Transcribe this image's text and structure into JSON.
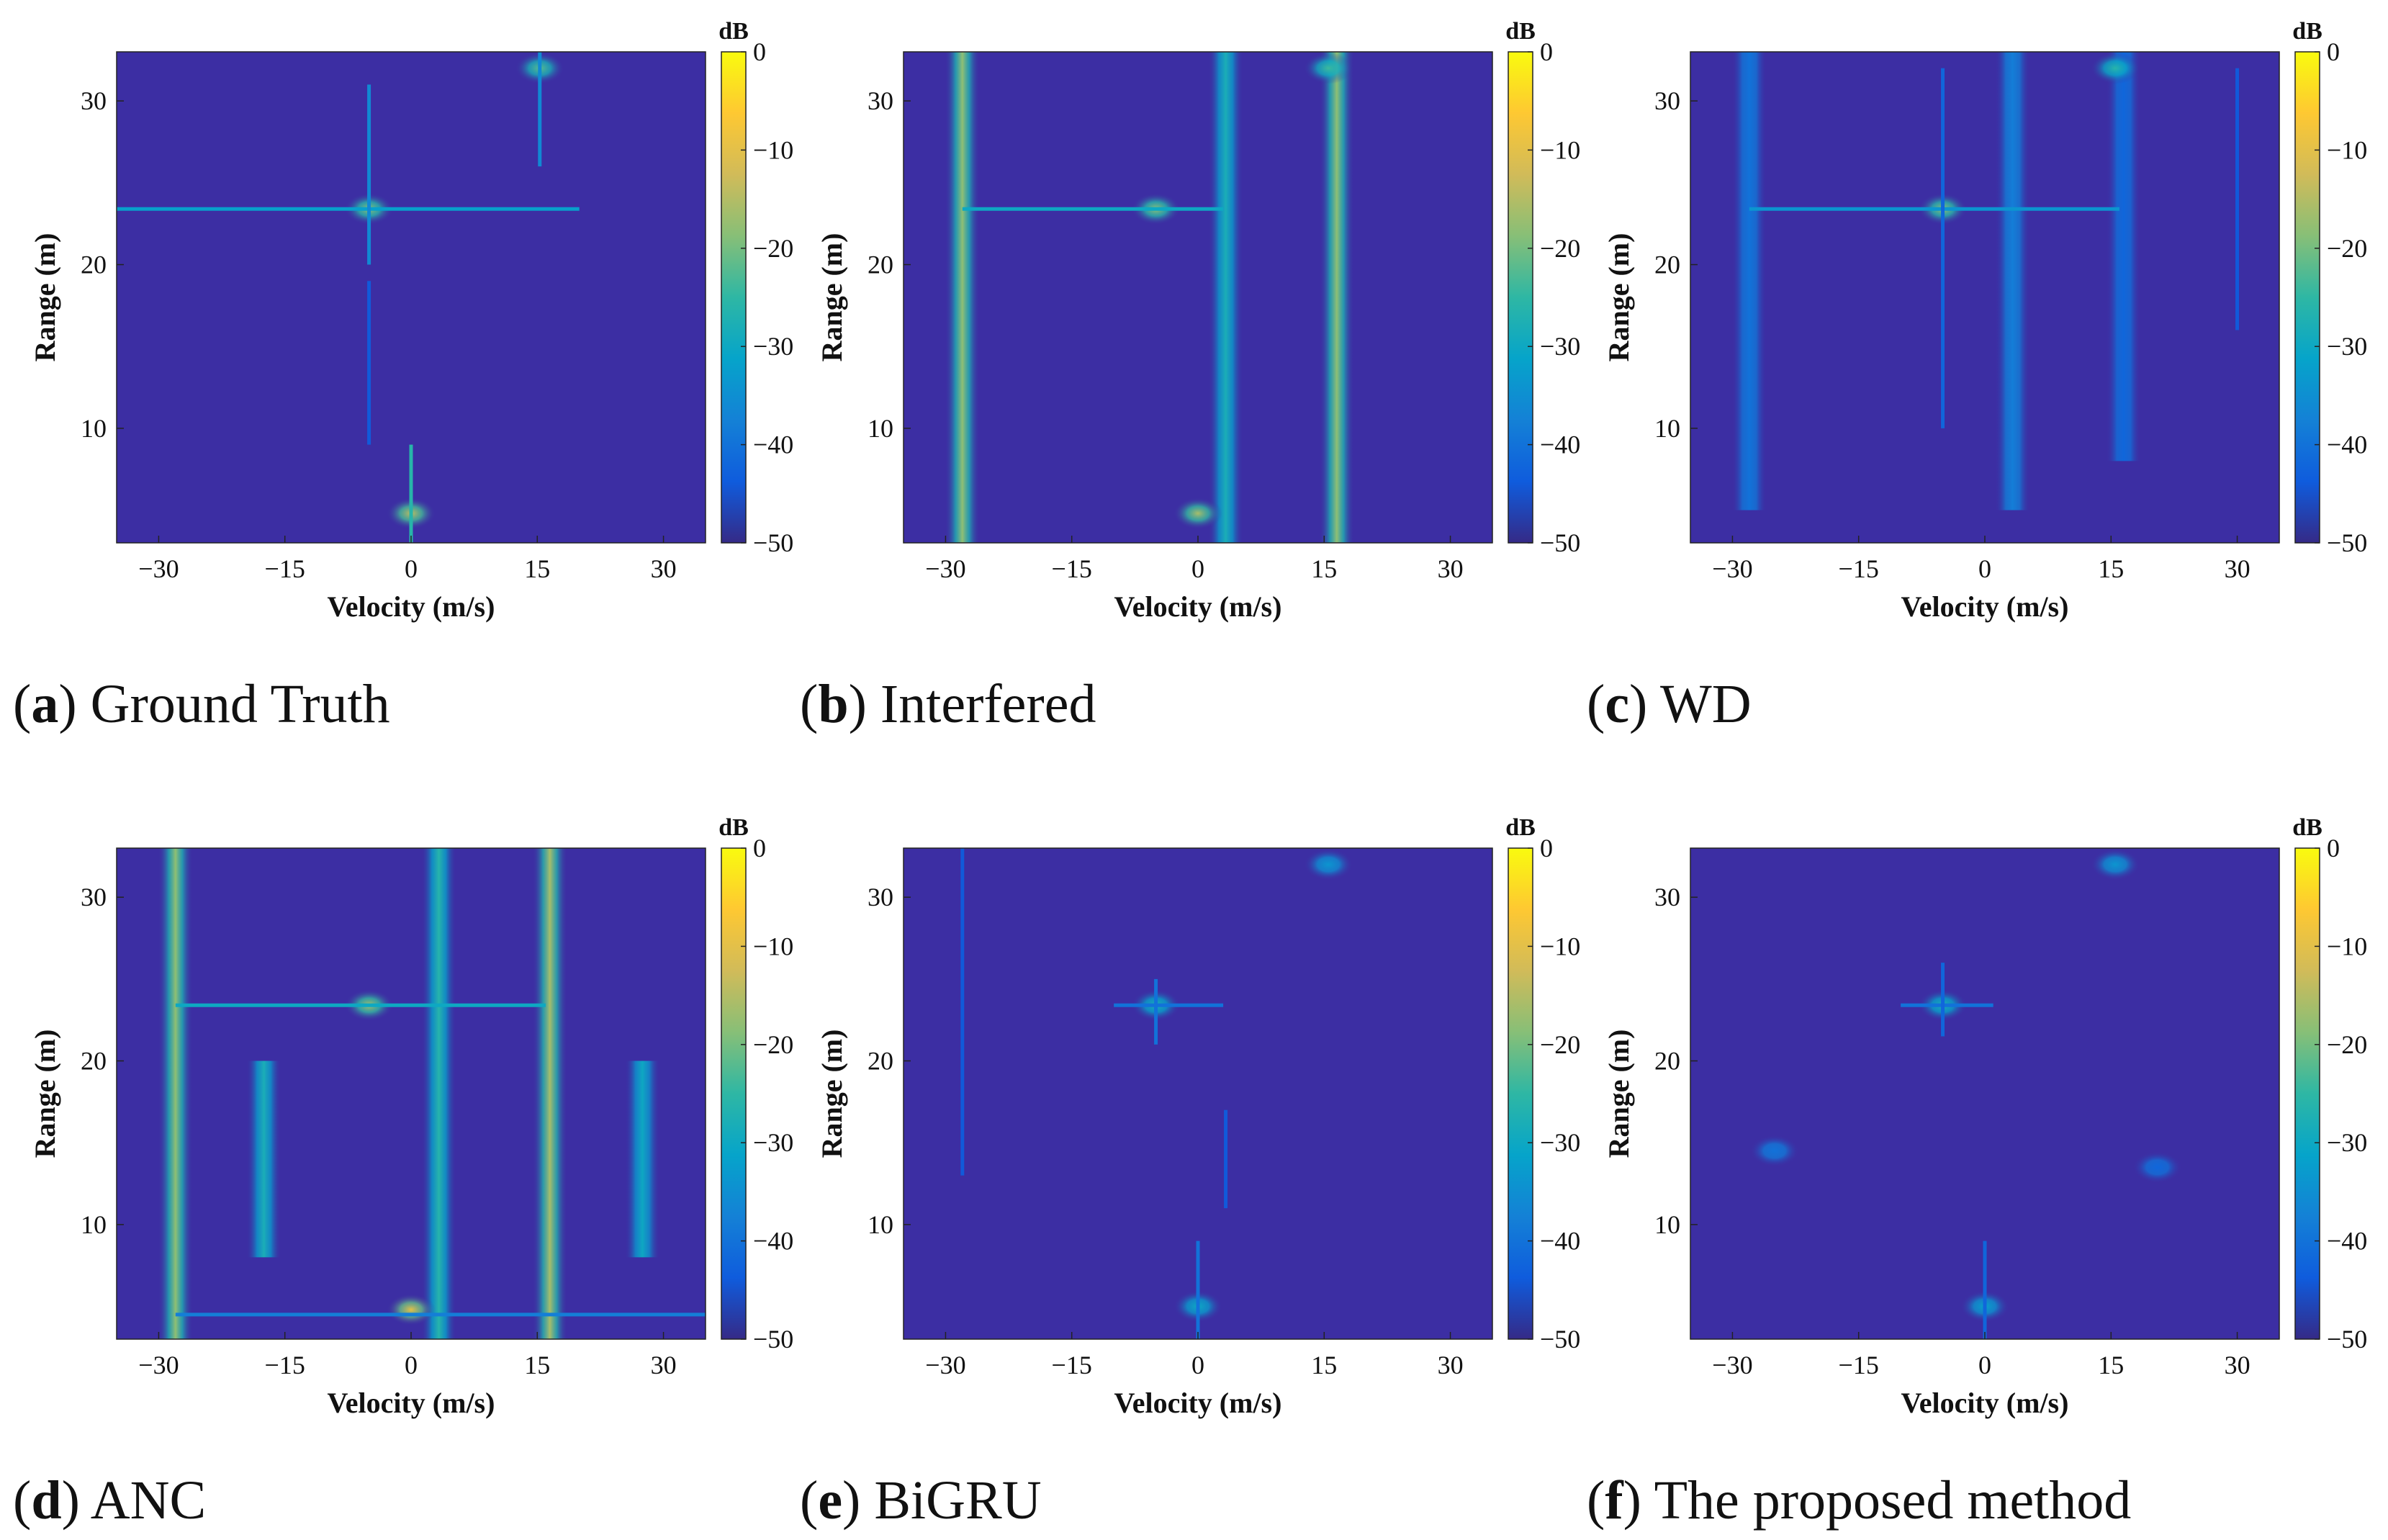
{
  "figure": {
    "colors": {
      "background": "#3c2ea3",
      "colormap": [
        "#352a87",
        "#0f5cdd",
        "#1481d6",
        "#06a4ca",
        "#2eb7a4",
        "#87bf77",
        "#d1bb59",
        "#fec832",
        "#f9fb0e"
      ]
    }
  },
  "chart_data": [
    {
      "type": "heatmap",
      "panel_letter": "a",
      "title": "Ground Truth",
      "xlabel": "Velocity (m/s)",
      "ylabel": "Range (m)",
      "xlim": [
        -35,
        35
      ],
      "ylim": [
        3,
        33
      ],
      "xticks": [
        -30,
        -15,
        0,
        15,
        30
      ],
      "yticks": [
        10,
        20,
        30
      ],
      "colorbar": {
        "label": "dB",
        "range": [
          -50,
          0
        ],
        "ticks": [
          0,
          -10,
          -20,
          -30,
          -40,
          -50
        ]
      },
      "features": [
        {
          "kind": "peak",
          "velocity": -5,
          "range": 23.4,
          "level_db": -18
        },
        {
          "kind": "hline",
          "range": 23.4,
          "from": -35,
          "to": 20,
          "level_db": -32
        },
        {
          "kind": "vline",
          "velocity": -5,
          "from": 20,
          "to": 31,
          "level_db": -36
        },
        {
          "kind": "peak",
          "velocity": 15.3,
          "range": 32,
          "level_db": -22
        },
        {
          "kind": "vline",
          "velocity": 15.3,
          "from": 26,
          "to": 33,
          "level_db": -36
        },
        {
          "kind": "peak",
          "velocity": 0,
          "range": 4.8,
          "level_db": -14
        },
        {
          "kind": "vline",
          "velocity": 0,
          "from": 3,
          "to": 9,
          "level_db": -26
        },
        {
          "kind": "vline",
          "velocity": -5,
          "from": 9,
          "to": 19,
          "level_db": -44
        }
      ]
    },
    {
      "type": "heatmap",
      "panel_letter": "b",
      "title": "Interfered",
      "xlabel": "Velocity (m/s)",
      "ylabel": "Range (m)",
      "xlim": [
        -35,
        35
      ],
      "ylim": [
        3,
        33
      ],
      "xticks": [
        -30,
        -15,
        0,
        15,
        30
      ],
      "yticks": [
        10,
        20,
        30
      ],
      "colorbar": {
        "label": "dB",
        "range": [
          -50,
          0
        ],
        "ticks": [
          0,
          -10,
          -20,
          -30,
          -40,
          -50
        ]
      },
      "features": [
        {
          "kind": "band",
          "velocity": -28,
          "from": 3,
          "to": 33,
          "level_db": -18
        },
        {
          "kind": "band",
          "velocity": 3.3,
          "from": 3,
          "to": 33,
          "level_db": -28
        },
        {
          "kind": "band",
          "velocity": 16.5,
          "from": 3,
          "to": 33,
          "level_db": -18
        },
        {
          "kind": "peak",
          "velocity": -5,
          "range": 23.4,
          "level_db": -18
        },
        {
          "kind": "hline",
          "range": 23.4,
          "from": -28,
          "to": 3,
          "level_db": -30
        },
        {
          "kind": "peak",
          "velocity": 0,
          "range": 4.8,
          "level_db": -16
        },
        {
          "kind": "peak",
          "velocity": 15.5,
          "range": 32,
          "level_db": -24
        }
      ]
    },
    {
      "type": "heatmap",
      "panel_letter": "c",
      "title": "WD",
      "xlabel": "Velocity (m/s)",
      "ylabel": "Range (m)",
      "xlim": [
        -35,
        35
      ],
      "ylim": [
        3,
        33
      ],
      "xticks": [
        -30,
        -15,
        0,
        15,
        30
      ],
      "yticks": [
        10,
        20,
        30
      ],
      "colorbar": {
        "label": "dB",
        "range": [
          -50,
          0
        ],
        "ticks": [
          0,
          -10,
          -20,
          -30,
          -40,
          -50
        ]
      },
      "features": [
        {
          "kind": "band",
          "velocity": -28,
          "from": 5,
          "to": 33,
          "level_db": -40
        },
        {
          "kind": "band",
          "velocity": 3.3,
          "from": 5,
          "to": 33,
          "level_db": -38
        },
        {
          "kind": "band",
          "velocity": 16.5,
          "from": 8,
          "to": 33,
          "level_db": -42
        },
        {
          "kind": "peak",
          "velocity": -5,
          "range": 23.4,
          "level_db": -18
        },
        {
          "kind": "hline",
          "range": 23.4,
          "from": -28,
          "to": 16,
          "level_db": -34
        },
        {
          "kind": "peak",
          "velocity": 15.5,
          "range": 32,
          "level_db": -26
        },
        {
          "kind": "vline",
          "velocity": -5,
          "from": 10,
          "to": 32,
          "level_db": -42
        },
        {
          "kind": "vline",
          "velocity": 30,
          "from": 16,
          "to": 32,
          "level_db": -44
        }
      ]
    },
    {
      "type": "heatmap",
      "panel_letter": "d",
      "title": "ANC",
      "xlabel": "Velocity (m/s)",
      "ylabel": "Range (m)",
      "xlim": [
        -35,
        35
      ],
      "ylim": [
        3,
        33
      ],
      "xticks": [
        -30,
        -15,
        0,
        15,
        30
      ],
      "yticks": [
        10,
        20,
        30
      ],
      "colorbar": {
        "label": "dB",
        "range": [
          -50,
          0
        ],
        "ticks": [
          0,
          -10,
          -20,
          -30,
          -40,
          -50
        ]
      },
      "features": [
        {
          "kind": "band",
          "velocity": -28,
          "from": 3,
          "to": 33,
          "level_db": -18
        },
        {
          "kind": "band",
          "velocity": 3.3,
          "from": 3,
          "to": 33,
          "level_db": -26
        },
        {
          "kind": "band",
          "velocity": 16.5,
          "from": 3,
          "to": 33,
          "level_db": -16
        },
        {
          "kind": "band",
          "velocity": -17.5,
          "from": 8,
          "to": 20,
          "level_db": -28
        },
        {
          "kind": "band",
          "velocity": 27.5,
          "from": 8,
          "to": 20,
          "level_db": -30
        },
        {
          "kind": "peak",
          "velocity": -5,
          "range": 23.4,
          "level_db": -16
        },
        {
          "kind": "hline",
          "range": 23.4,
          "from": -28,
          "to": 16,
          "level_db": -30
        },
        {
          "kind": "peak",
          "velocity": 0,
          "range": 4.8,
          "level_db": -10
        },
        {
          "kind": "hline",
          "range": 4.5,
          "from": -28,
          "to": 35,
          "level_db": -38
        }
      ]
    },
    {
      "type": "heatmap",
      "panel_letter": "e",
      "title": "BiGRU",
      "xlabel": "Velocity (m/s)",
      "ylabel": "Range (m)",
      "xlim": [
        -35,
        35
      ],
      "ylim": [
        3,
        33
      ],
      "xticks": [
        -30,
        -15,
        0,
        15,
        30
      ],
      "yticks": [
        10,
        20,
        30
      ],
      "colorbar": {
        "label": "dB",
        "range": [
          -50,
          0
        ],
        "ticks": [
          0,
          -10,
          -20,
          -30,
          -40,
          -50
        ]
      },
      "features": [
        {
          "kind": "peak",
          "velocity": -5,
          "range": 23.4,
          "level_db": -28
        },
        {
          "kind": "hline",
          "range": 23.4,
          "from": -10,
          "to": 3,
          "level_db": -40
        },
        {
          "kind": "vline",
          "velocity": -5,
          "from": 21,
          "to": 25,
          "level_db": -40
        },
        {
          "kind": "peak",
          "velocity": 15.5,
          "range": 32,
          "level_db": -34
        },
        {
          "kind": "peak",
          "velocity": 0,
          "range": 5,
          "level_db": -30
        },
        {
          "kind": "vline",
          "velocity": 0,
          "from": 3,
          "to": 9,
          "level_db": -40
        },
        {
          "kind": "vline",
          "velocity": -28,
          "from": 13,
          "to": 33,
          "level_db": -44
        },
        {
          "kind": "vline",
          "velocity": 3.3,
          "from": 11,
          "to": 17,
          "level_db": -44
        }
      ]
    },
    {
      "type": "heatmap",
      "panel_letter": "f",
      "title": "The proposed method",
      "xlabel": "Velocity (m/s)",
      "ylabel": "Range (m)",
      "xlim": [
        -35,
        35
      ],
      "ylim": [
        3,
        33
      ],
      "xticks": [
        -30,
        -15,
        0,
        15,
        30
      ],
      "yticks": [
        10,
        20,
        30
      ],
      "colorbar": {
        "label": "dB",
        "range": [
          -50,
          0
        ],
        "ticks": [
          0,
          -10,
          -20,
          -30,
          -40,
          -50
        ]
      },
      "features": [
        {
          "kind": "peak",
          "velocity": -5,
          "range": 23.4,
          "level_db": -28
        },
        {
          "kind": "hline",
          "range": 23.4,
          "from": -10,
          "to": 1,
          "level_db": -40
        },
        {
          "kind": "vline",
          "velocity": -5,
          "from": 21.5,
          "to": 26,
          "level_db": -42
        },
        {
          "kind": "peak",
          "velocity": 15.5,
          "range": 32,
          "level_db": -34
        },
        {
          "kind": "peak",
          "velocity": 0,
          "range": 5,
          "level_db": -32
        },
        {
          "kind": "vline",
          "velocity": 0,
          "from": 3,
          "to": 9,
          "level_db": -42
        },
        {
          "kind": "peak",
          "velocity": -25,
          "range": 14.5,
          "level_db": -40
        },
        {
          "kind": "peak",
          "velocity": 20.5,
          "range": 13.5,
          "level_db": -42
        }
      ]
    }
  ]
}
